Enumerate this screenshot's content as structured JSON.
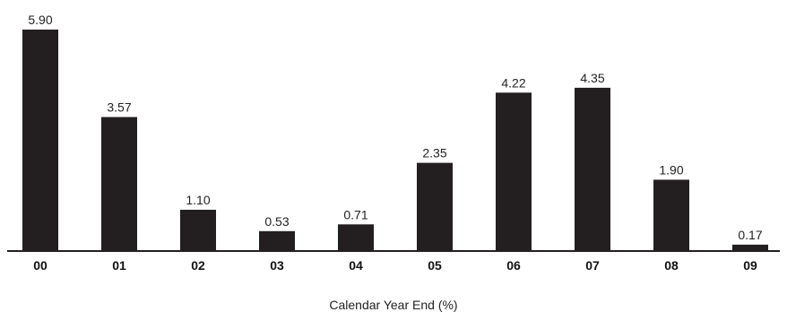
{
  "chart_data": {
    "type": "bar",
    "categories": [
      "00",
      "01",
      "02",
      "03",
      "04",
      "05",
      "06",
      "07",
      "08",
      "09"
    ],
    "values": [
      5.9,
      3.57,
      1.1,
      0.53,
      0.71,
      2.35,
      4.22,
      4.35,
      1.9,
      0.17
    ],
    "value_labels": [
      "5.90",
      "3.57",
      "1.10",
      "0.53",
      "0.71",
      "2.35",
      "4.22",
      "4.35",
      "1.90",
      "0.17"
    ],
    "xlabel": "Calendar Year End (%)",
    "ylim": [
      0,
      5.9
    ],
    "grid": false,
    "colors": {
      "bar": "#231f20",
      "axis": "#231f20"
    }
  }
}
